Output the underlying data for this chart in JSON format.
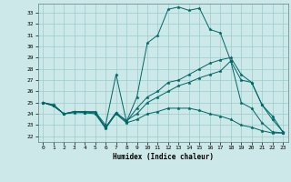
{
  "title": "",
  "xlabel": "Humidex (Indice chaleur)",
  "bg_color": "#cce8e8",
  "grid_color": "#99cccc",
  "line_color": "#006666",
  "xlim": [
    -0.5,
    23.5
  ],
  "ylim": [
    21.5,
    33.8
  ],
  "yticks": [
    22,
    23,
    24,
    25,
    26,
    27,
    28,
    29,
    30,
    31,
    32,
    33
  ],
  "xticks": [
    0,
    1,
    2,
    3,
    4,
    5,
    6,
    7,
    8,
    9,
    10,
    11,
    12,
    13,
    14,
    15,
    16,
    17,
    18,
    19,
    20,
    21,
    22,
    23
  ],
  "lines": [
    {
      "x": [
        0,
        1,
        2,
        3,
        4,
        5,
        6,
        7,
        8,
        9,
        10,
        11,
        12,
        13,
        14,
        15,
        16,
        17,
        18,
        19,
        20,
        21,
        22,
        23
      ],
      "y": [
        25.0,
        24.8,
        24.0,
        24.2,
        24.2,
        24.2,
        23.0,
        27.5,
        23.3,
        25.5,
        30.3,
        31.0,
        33.3,
        33.5,
        33.2,
        33.4,
        31.5,
        31.2,
        28.7,
        25.0,
        24.5,
        23.2,
        22.4,
        22.3
      ]
    },
    {
      "x": [
        0,
        1,
        2,
        3,
        4,
        5,
        6,
        7,
        8,
        9,
        10,
        11,
        12,
        13,
        14,
        15,
        16,
        17,
        18,
        19,
        20,
        21,
        22,
        23
      ],
      "y": [
        25.0,
        24.7,
        24.0,
        24.2,
        24.1,
        24.1,
        22.8,
        24.1,
        23.4,
        24.0,
        25.0,
        25.5,
        26.0,
        26.5,
        26.8,
        27.2,
        27.5,
        27.8,
        28.7,
        27.0,
        26.8,
        24.8,
        23.5,
        22.4
      ]
    },
    {
      "x": [
        0,
        1,
        2,
        3,
        4,
        5,
        6,
        7,
        8,
        9,
        10,
        11,
        12,
        13,
        14,
        15,
        16,
        17,
        18,
        19,
        20,
        21,
        22,
        23
      ],
      "y": [
        25.0,
        24.7,
        24.0,
        24.1,
        24.1,
        24.0,
        22.7,
        24.0,
        23.2,
        23.5,
        24.0,
        24.2,
        24.5,
        24.5,
        24.5,
        24.3,
        24.0,
        23.8,
        23.5,
        23.0,
        22.8,
        22.5,
        22.3,
        22.3
      ]
    },
    {
      "x": [
        0,
        1,
        2,
        3,
        4,
        5,
        6,
        7,
        8,
        9,
        10,
        11,
        12,
        13,
        14,
        15,
        16,
        17,
        18,
        19,
        20,
        21,
        22,
        23
      ],
      "y": [
        25.0,
        24.8,
        24.0,
        24.2,
        24.2,
        24.1,
        22.8,
        24.1,
        23.3,
        24.5,
        25.5,
        26.0,
        26.8,
        27.0,
        27.5,
        28.0,
        28.5,
        28.8,
        29.0,
        27.5,
        26.8,
        24.8,
        23.8,
        22.4
      ]
    }
  ]
}
